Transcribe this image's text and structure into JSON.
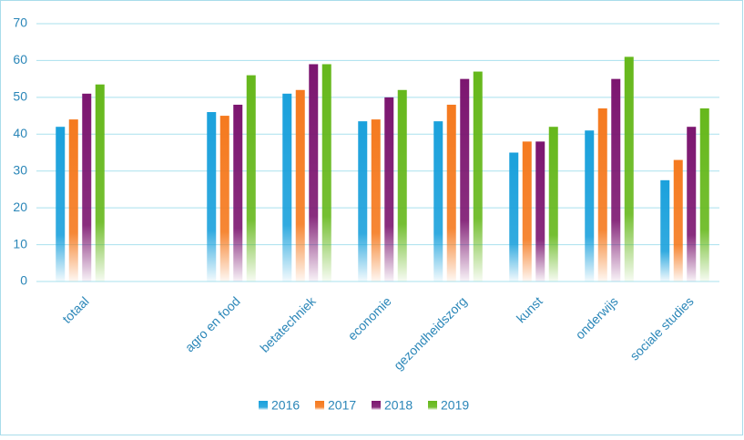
{
  "chart_data": {
    "type": "bar",
    "categories": [
      "totaal",
      null,
      "agro en food",
      "betatechniek",
      "economie",
      "gezondheidszorg",
      "kunst",
      "onderwijs",
      "sociale studies"
    ],
    "series": [
      {
        "name": "2016",
        "color": "#1ba1dc",
        "values": [
          42,
          null,
          46,
          51,
          43.5,
          43.5,
          35,
          41,
          27.5
        ]
      },
      {
        "name": "2017",
        "color": "#f57a1f",
        "values": [
          44,
          null,
          45,
          52,
          44,
          48,
          38,
          47,
          33
        ]
      },
      {
        "name": "2018",
        "color": "#7c1670",
        "values": [
          51,
          null,
          48,
          59,
          50,
          55,
          38,
          55,
          42
        ]
      },
      {
        "name": "2019",
        "color": "#66b81c",
        "values": [
          53.5,
          null,
          56,
          59,
          52,
          57,
          42,
          61,
          47
        ]
      }
    ],
    "ylim": [
      0,
      70
    ],
    "yticks": [
      0,
      10,
      20,
      30,
      40,
      50,
      60,
      70
    ],
    "grid": true
  }
}
